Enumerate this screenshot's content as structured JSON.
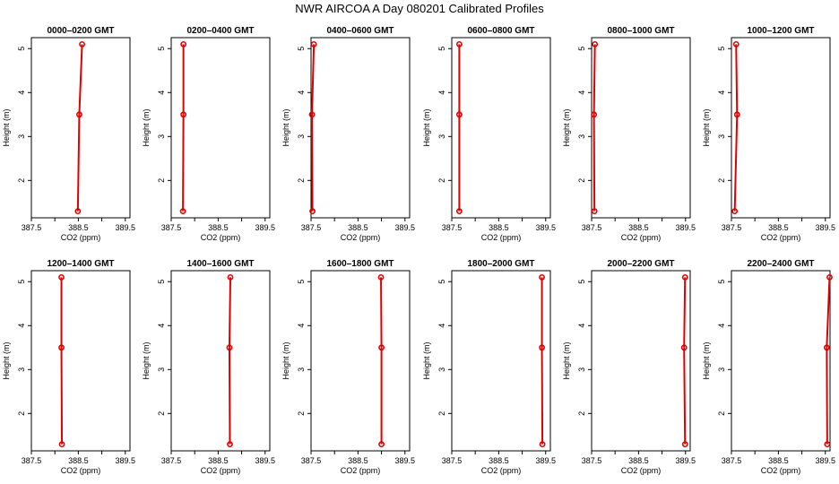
{
  "title": "NWR AIRCOA A  Day 080201  Calibrated Profiles",
  "chart_data": {
    "type": "line",
    "line_color": "#e00000",
    "marker": "open-circle",
    "xlim": [
      387.5,
      389.6
    ],
    "ylim": [
      1.15,
      5.25
    ],
    "xticks": [
      387.5,
      388.0,
      388.5,
      389.0,
      389.5
    ],
    "xtick_labels": [
      "387.5",
      "",
      "388.5",
      "",
      "389.5"
    ],
    "yticks": [
      2,
      3,
      4,
      5
    ],
    "ytick_labels": [
      "2",
      "3",
      "4",
      "5"
    ],
    "xlabel": "CO2 (ppm)",
    "ylabel": "Height (m)",
    "heights": [
      1.3,
      3.5,
      5.1
    ],
    "panels": [
      {
        "title": "0000–0200 GMT",
        "co2": [
          388.49,
          388.52,
          388.58
        ]
      },
      {
        "title": "0200–0400 GMT",
        "co2": [
          387.75,
          387.76,
          387.76
        ]
      },
      {
        "title": "0400–0600 GMT",
        "co2": [
          387.53,
          387.52,
          387.56
        ]
      },
      {
        "title": "0600–0800 GMT",
        "co2": [
          387.66,
          387.66,
          387.66
        ]
      },
      {
        "title": "0800–1000 GMT",
        "co2": [
          387.56,
          387.55,
          387.57
        ]
      },
      {
        "title": "1000–1200 GMT",
        "co2": [
          387.57,
          387.62,
          387.6
        ]
      },
      {
        "title": "1200–1400 GMT",
        "co2": [
          388.15,
          388.14,
          388.14
        ]
      },
      {
        "title": "1400–1600 GMT",
        "co2": [
          388.75,
          388.74,
          388.76
        ]
      },
      {
        "title": "1600–1800 GMT",
        "co2": [
          389.0,
          389.0,
          388.99
        ]
      },
      {
        "title": "1800–2000 GMT",
        "co2": [
          389.43,
          389.42,
          389.42
        ]
      },
      {
        "title": "2000–2200 GMT",
        "co2": [
          389.49,
          389.47,
          389.49
        ]
      },
      {
        "title": "2200–2400 GMT",
        "co2": [
          389.54,
          389.53,
          389.59
        ]
      }
    ]
  }
}
